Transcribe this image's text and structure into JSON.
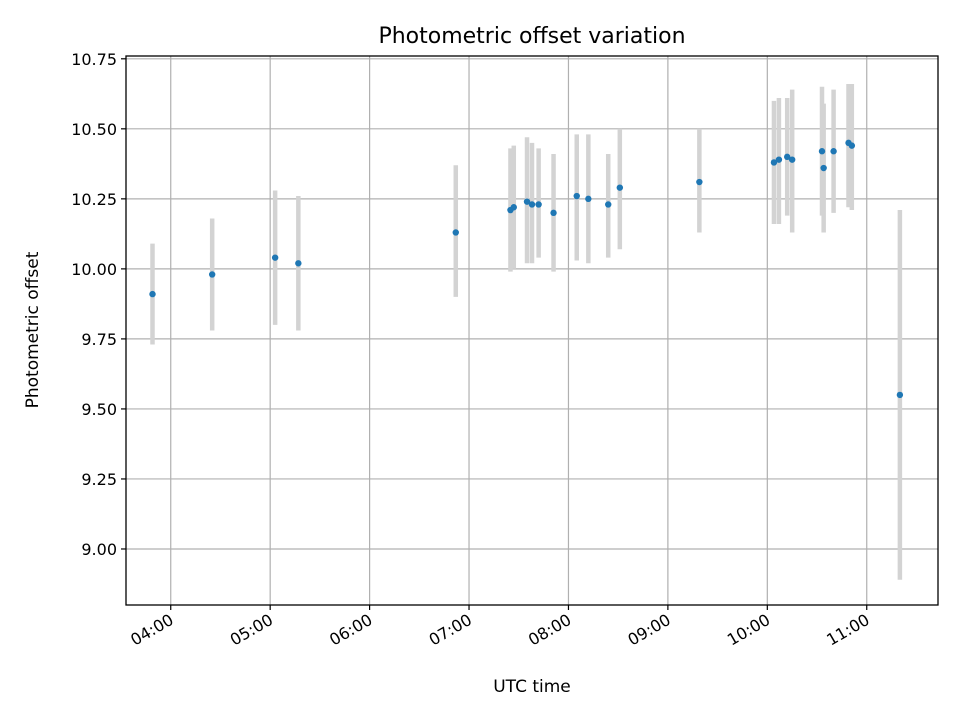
{
  "chart_data": {
    "type": "scatter",
    "title": "Photometric offset variation",
    "xlabel": "UTC time",
    "ylabel": "Photometric offset",
    "x_tick_labels": [
      "04:00",
      "05:00",
      "06:00",
      "07:00",
      "08:00",
      "09:00",
      "10:00",
      "11:00"
    ],
    "y_ticks": [
      9.0,
      9.25,
      9.5,
      9.75,
      10.0,
      10.25,
      10.5,
      10.75
    ],
    "y_tick_labels": [
      "9.00",
      "9.25",
      "9.50",
      "9.75",
      "10.00",
      "10.25",
      "10.50",
      "10.75"
    ],
    "xlim": [
      "03:33",
      "11:43"
    ],
    "ylim": [
      8.8,
      10.76
    ],
    "grid": true,
    "colors": {
      "marker": "#1f77b4",
      "errorbar": "#d3d3d3"
    },
    "series": [
      {
        "points": [
          {
            "x": "03:49",
            "y": 9.91,
            "ylo": 9.73,
            "yhi": 10.09
          },
          {
            "x": "04:25",
            "y": 9.98,
            "ylo": 9.78,
            "yhi": 10.18
          },
          {
            "x": "05:03",
            "y": 10.04,
            "ylo": 9.8,
            "yhi": 10.28
          },
          {
            "x": "05:17",
            "y": 10.02,
            "ylo": 9.78,
            "yhi": 10.26
          },
          {
            "x": "06:52",
            "y": 10.13,
            "ylo": 9.9,
            "yhi": 10.37
          },
          {
            "x": "07:25",
            "y": 10.21,
            "ylo": 9.99,
            "yhi": 10.43
          },
          {
            "x": "07:27",
            "y": 10.22,
            "ylo": 10.0,
            "yhi": 10.44
          },
          {
            "x": "07:35",
            "y": 10.24,
            "ylo": 10.02,
            "yhi": 10.47
          },
          {
            "x": "07:38",
            "y": 10.23,
            "ylo": 10.02,
            "yhi": 10.45
          },
          {
            "x": "07:42",
            "y": 10.23,
            "ylo": 10.04,
            "yhi": 10.43
          },
          {
            "x": "07:51",
            "y": 10.2,
            "ylo": 9.99,
            "yhi": 10.41
          },
          {
            "x": "08:05",
            "y": 10.26,
            "ylo": 10.03,
            "yhi": 10.48
          },
          {
            "x": "08:12",
            "y": 10.25,
            "ylo": 10.02,
            "yhi": 10.48
          },
          {
            "x": "08:24",
            "y": 10.23,
            "ylo": 10.04,
            "yhi": 10.41
          },
          {
            "x": "08:31",
            "y": 10.29,
            "ylo": 10.07,
            "yhi": 10.5
          },
          {
            "x": "09:19",
            "y": 10.31,
            "ylo": 10.13,
            "yhi": 10.5
          },
          {
            "x": "10:04",
            "y": 10.38,
            "ylo": 10.16,
            "yhi": 10.6
          },
          {
            "x": "10:07",
            "y": 10.39,
            "ylo": 10.16,
            "yhi": 10.61
          },
          {
            "x": "10:12",
            "y": 10.4,
            "ylo": 10.19,
            "yhi": 10.61
          },
          {
            "x": "10:15",
            "y": 10.39,
            "ylo": 10.13,
            "yhi": 10.64
          },
          {
            "x": "10:33",
            "y": 10.42,
            "ylo": 10.19,
            "yhi": 10.65
          },
          {
            "x": "10:34",
            "y": 10.36,
            "ylo": 10.13,
            "yhi": 10.59
          },
          {
            "x": "10:40",
            "y": 10.42,
            "ylo": 10.2,
            "yhi": 10.64
          },
          {
            "x": "10:49",
            "y": 10.45,
            "ylo": 10.22,
            "yhi": 10.66
          },
          {
            "x": "10:51",
            "y": 10.44,
            "ylo": 10.21,
            "yhi": 10.66
          },
          {
            "x": "11:20",
            "y": 9.55,
            "ylo": 8.89,
            "yhi": 10.21
          }
        ]
      }
    ]
  }
}
